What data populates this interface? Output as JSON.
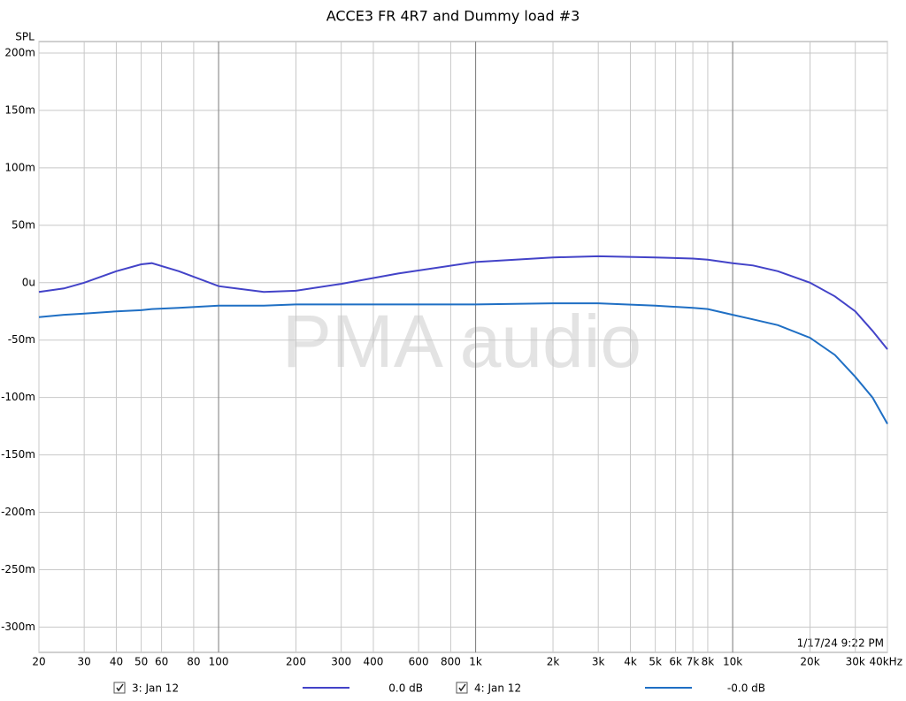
{
  "chart_data": {
    "type": "line",
    "title": "ACCE3 FR 4R7 and Dummy load #3",
    "y_label": "SPL",
    "watermark": "PMA audio",
    "timestamp": "1/17/24 9:22 PM",
    "x_scale": "log",
    "grid": true,
    "xlim": [
      20,
      40000
    ],
    "ylim": [
      -322,
      210
    ],
    "xticks": [
      20,
      30,
      40,
      50,
      60,
      80,
      100,
      200,
      300,
      400,
      600,
      800,
      {
        "value": 1000,
        "label": "1k"
      },
      {
        "value": 2000,
        "label": "2k"
      },
      {
        "value": 3000,
        "label": "3k"
      },
      {
        "value": 4000,
        "label": "4k"
      },
      {
        "value": 5000,
        "label": "5k"
      },
      {
        "value": 6000,
        "label": "6k"
      },
      {
        "value": 7000,
        "label": "7k"
      },
      {
        "value": 8000,
        "label": "8k"
      },
      {
        "value": 10000,
        "label": "10k"
      },
      {
        "value": 20000,
        "label": "20k"
      },
      {
        "value": 30000,
        "label": "30k"
      },
      {
        "value": 40000,
        "label": "40kHz"
      }
    ],
    "major_xticks": [
      100,
      1000,
      10000
    ],
    "yticks": [
      {
        "value": 200,
        "label": "200m"
      },
      {
        "value": 150,
        "label": "150m"
      },
      {
        "value": 100,
        "label": "100m"
      },
      {
        "value": 50,
        "label": "50m"
      },
      {
        "value": 0,
        "label": "0u"
      },
      {
        "value": -50,
        "label": "-50m"
      },
      {
        "value": -100,
        "label": "-100m"
      },
      {
        "value": -150,
        "label": "-150m"
      },
      {
        "value": -200,
        "label": "-200m"
      },
      {
        "value": -250,
        "label": "-250m"
      },
      {
        "value": -300,
        "label": "-300m"
      }
    ],
    "x": [
      20,
      25,
      30,
      40,
      50,
      55,
      70,
      100,
      150,
      200,
      300,
      500,
      1000,
      2000,
      3000,
      5000,
      7000,
      8000,
      10000,
      12000,
      15000,
      20000,
      25000,
      30000,
      35000,
      40000
    ],
    "series": [
      {
        "name": "3: Jan 12",
        "legend_value": "0.0 dB",
        "color": "#4343c8",
        "values": [
          -8,
          -5,
          0,
          10,
          16,
          17,
          10,
          -3,
          -8,
          -7,
          -1,
          8,
          18,
          22,
          23,
          22,
          21,
          20,
          17,
          15,
          10,
          0,
          -12,
          -25,
          -42,
          -58
        ]
      },
      {
        "name": "4: Jan 12",
        "legend_value": "-0.0 dB",
        "color": "#1f6fc4",
        "values": [
          -30,
          -28,
          -27,
          -25,
          -24,
          -23,
          -22,
          -20,
          -20,
          -19,
          -19,
          -19,
          -19,
          -18,
          -18,
          -20,
          -22,
          -23,
          -28,
          -32,
          -37,
          -48,
          -63,
          -82,
          -100,
          -123
        ]
      }
    ]
  }
}
